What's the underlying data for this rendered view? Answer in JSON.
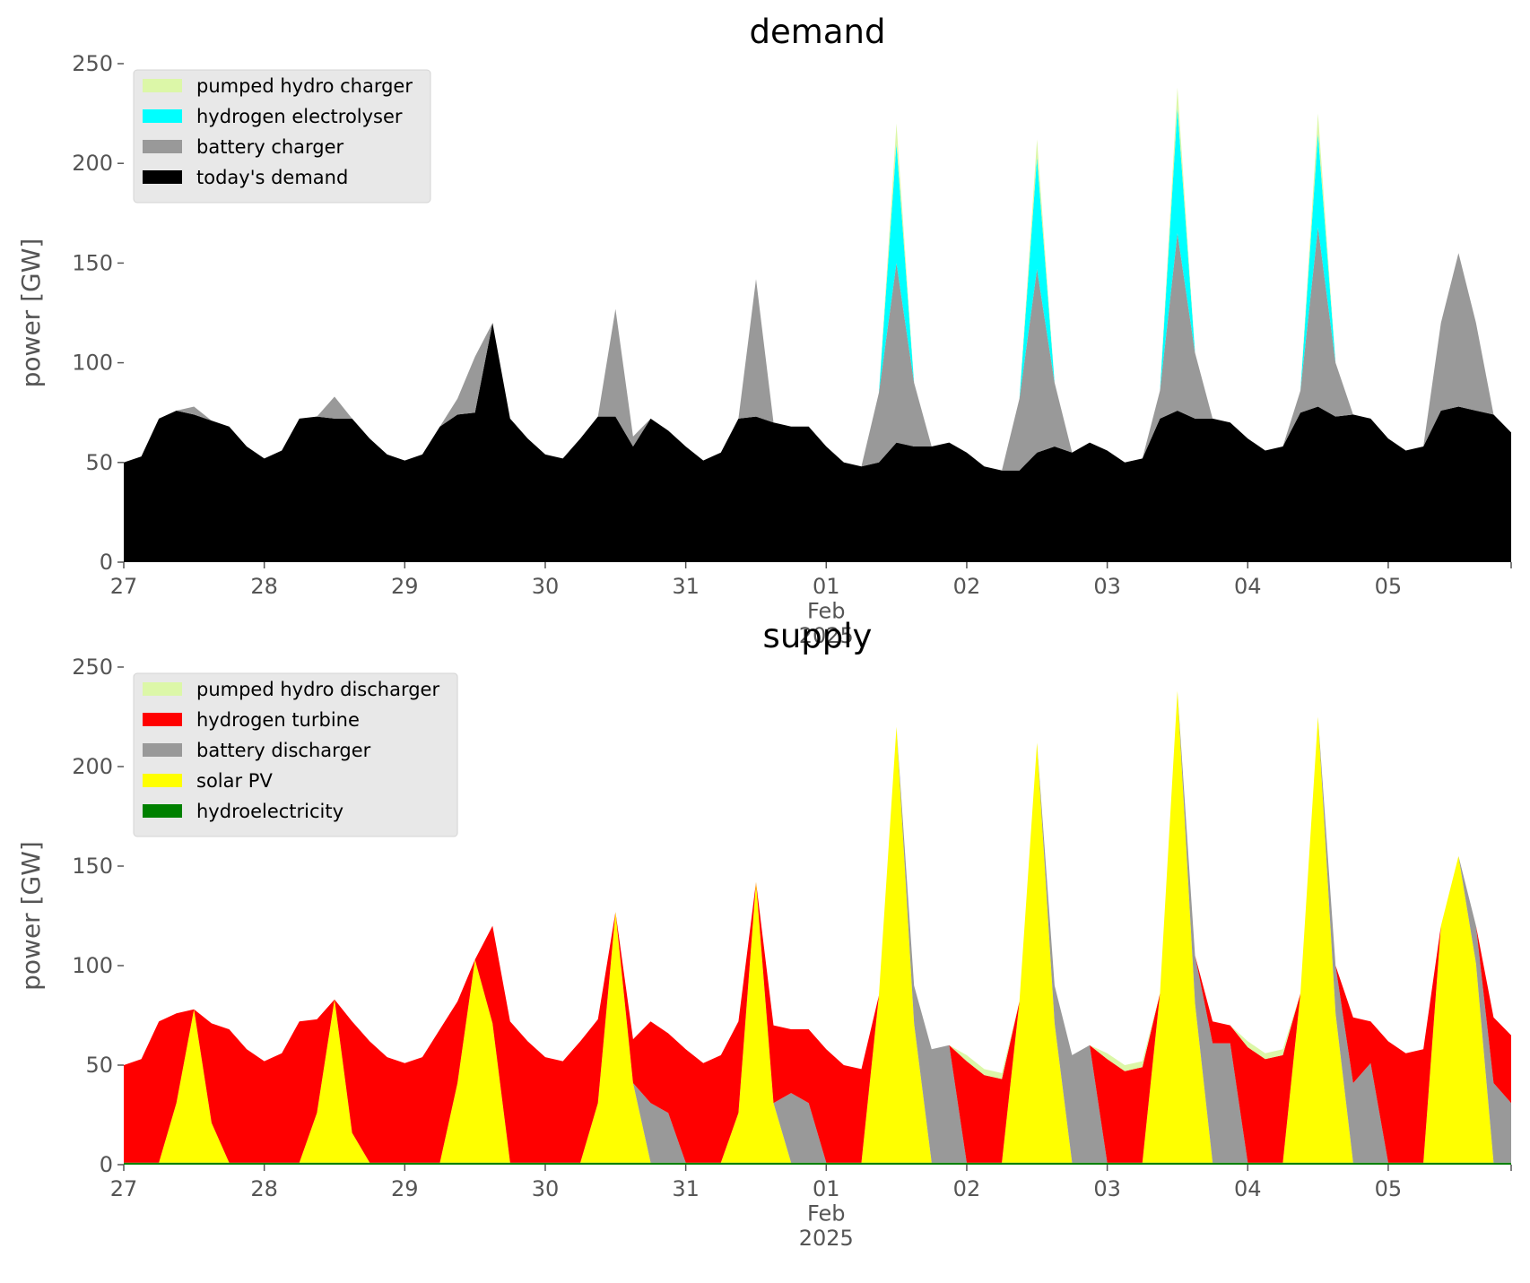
{
  "chart_data": [
    {
      "type": "area",
      "stacked": true,
      "title": "demand",
      "ylabel": "power [GW]",
      "legend": "upper left",
      "x": [
        0,
        0.125,
        0.25,
        0.375,
        0.5,
        0.625,
        0.75,
        0.875,
        1,
        1.125,
        1.25,
        1.375,
        1.5,
        1.625,
        1.75,
        1.875,
        2,
        2.125,
        2.25,
        2.375,
        2.5,
        2.625,
        2.75,
        2.875,
        3,
        3.125,
        3.25,
        3.375,
        3.5,
        3.625,
        3.75,
        3.875,
        4,
        4.125,
        4.25,
        4.375,
        4.5,
        4.625,
        4.75,
        4.875,
        5,
        5.125,
        5.25,
        5.375,
        5.5,
        5.625,
        5.75,
        5.875,
        6,
        6.125,
        6.25,
        6.375,
        6.5,
        6.625,
        6.75,
        6.875,
        7,
        7.125,
        7.25,
        7.375,
        7.5,
        7.625,
        7.75,
        7.875,
        8,
        8.125,
        8.25,
        8.375,
        8.5,
        8.625,
        8.75,
        8.875,
        9,
        9.125,
        9.25,
        9.375,
        9.5,
        9.625,
        9.75,
        9.875
      ],
      "xlim": [
        0,
        9.875
      ],
      "xticks": [
        {
          "value": 0,
          "label": "27"
        },
        {
          "value": 1,
          "label": "28"
        },
        {
          "value": 2,
          "label": "29"
        },
        {
          "value": 3,
          "label": "30"
        },
        {
          "value": 4,
          "label": "31"
        },
        {
          "value": 5,
          "label": "01\nFeb\n2025"
        },
        {
          "value": 6,
          "label": "02"
        },
        {
          "value": 7,
          "label": "03"
        },
        {
          "value": 8,
          "label": "04"
        },
        {
          "value": 9,
          "label": "05"
        }
      ],
      "ylim": [
        0,
        250
      ],
      "yticks": [
        0,
        50,
        100,
        150,
        200,
        250
      ],
      "series": [
        {
          "name": "today's demand",
          "color": "#000000",
          "values": [
            50,
            53,
            72,
            76,
            74,
            71,
            68,
            58,
            52,
            56,
            72,
            73,
            72,
            72,
            62,
            54,
            51,
            54,
            68,
            74,
            75,
            120,
            72,
            62,
            54,
            52,
            62,
            73,
            73,
            58,
            72,
            66,
            58,
            51,
            55,
            72,
            73,
            70,
            68,
            68,
            58,
            50,
            48,
            50,
            60,
            58,
            58,
            60,
            55,
            48,
            46,
            46,
            55,
            58,
            55,
            60,
            56,
            50,
            52,
            72,
            76,
            72,
            72,
            70,
            62,
            56,
            58,
            75,
            78,
            73,
            74,
            72,
            62,
            56,
            58,
            76,
            78,
            76,
            74,
            65
          ]
        },
        {
          "name": "battery charger",
          "color": "#999999",
          "values": [
            0,
            0,
            0,
            0,
            4,
            0,
            0,
            0,
            0,
            0,
            0,
            0,
            11,
            0,
            0,
            0,
            0,
            0,
            0,
            8,
            28,
            0,
            0,
            0,
            0,
            0,
            0,
            0,
            54,
            5,
            0,
            0,
            0,
            0,
            0,
            0,
            69,
            0,
            0,
            0,
            0,
            0,
            0,
            35,
            90,
            32,
            0,
            0,
            0,
            0,
            0,
            36,
            92,
            32,
            0,
            0,
            0,
            0,
            0,
            14,
            89,
            33,
            0,
            0,
            0,
            0,
            0,
            11,
            90,
            27,
            0,
            0,
            0,
            0,
            0,
            44,
            77,
            44,
            0,
            0
          ]
        },
        {
          "name": "hydrogen electrolyser",
          "color": "#00ffff",
          "values": [
            0,
            0,
            0,
            0,
            0,
            0,
            0,
            0,
            0,
            0,
            0,
            0,
            0,
            0,
            0,
            0,
            0,
            0,
            0,
            0,
            0,
            0,
            0,
            0,
            0,
            0,
            0,
            0,
            0,
            0,
            0,
            0,
            0,
            0,
            0,
            0,
            0,
            0,
            0,
            0,
            0,
            0,
            0,
            0,
            60,
            0,
            0,
            0,
            0,
            0,
            0,
            0,
            56,
            0,
            0,
            0,
            0,
            0,
            0,
            0,
            63,
            0,
            0,
            0,
            0,
            0,
            0,
            0,
            47,
            0,
            0,
            0,
            0,
            0,
            0,
            0,
            0,
            0,
            0,
            0
          ]
        },
        {
          "name": "pumped hydro charger",
          "color": "#dcf7a8",
          "values": [
            0,
            0,
            0,
            0,
            0,
            0,
            0,
            0,
            0,
            0,
            0,
            0,
            0,
            0,
            0,
            0,
            0,
            0,
            0,
            0,
            0,
            0,
            0,
            0,
            0,
            0,
            0,
            0,
            0,
            0,
            0,
            0,
            0,
            0,
            0,
            0,
            0,
            0,
            0,
            0,
            0,
            0,
            0,
            0,
            10,
            0,
            0,
            0,
            0,
            0,
            0,
            0,
            9,
            0,
            0,
            0,
            0,
            0,
            0,
            0,
            10,
            0,
            0,
            0,
            0,
            0,
            0,
            0,
            10,
            0,
            0,
            0,
            0,
            0,
            0,
            0,
            0,
            0,
            0,
            0
          ]
        }
      ]
    },
    {
      "type": "area",
      "stacked": true,
      "title": "supply",
      "ylabel": "power [GW]",
      "legend": "upper left",
      "x": [
        0,
        0.125,
        0.25,
        0.375,
        0.5,
        0.625,
        0.75,
        0.875,
        1,
        1.125,
        1.25,
        1.375,
        1.5,
        1.625,
        1.75,
        1.875,
        2,
        2.125,
        2.25,
        2.375,
        2.5,
        2.625,
        2.75,
        2.875,
        3,
        3.125,
        3.25,
        3.375,
        3.5,
        3.625,
        3.75,
        3.875,
        4,
        4.125,
        4.25,
        4.375,
        4.5,
        4.625,
        4.75,
        4.875,
        5,
        5.125,
        5.25,
        5.375,
        5.5,
        5.625,
        5.75,
        5.875,
        6,
        6.125,
        6.25,
        6.375,
        6.5,
        6.625,
        6.75,
        6.875,
        7,
        7.125,
        7.25,
        7.375,
        7.5,
        7.625,
        7.75,
        7.875,
        8,
        8.125,
        8.25,
        8.375,
        8.5,
        8.625,
        8.75,
        8.875,
        9,
        9.125,
        9.25,
        9.375,
        9.5,
        9.625,
        9.75,
        9.875
      ],
      "xlim": [
        0,
        9.875
      ],
      "xticks": [
        {
          "value": 0,
          "label": "27"
        },
        {
          "value": 1,
          "label": "28"
        },
        {
          "value": 2,
          "label": "29"
        },
        {
          "value": 3,
          "label": "30"
        },
        {
          "value": 4,
          "label": "31"
        },
        {
          "value": 5,
          "label": "01\nFeb\n2025"
        },
        {
          "value": 6,
          "label": "02"
        },
        {
          "value": 7,
          "label": "03"
        },
        {
          "value": 8,
          "label": "04"
        },
        {
          "value": 9,
          "label": "05"
        }
      ],
      "ylim": [
        0,
        250
      ],
      "yticks": [
        0,
        50,
        100,
        150,
        200,
        250
      ],
      "series": [
        {
          "name": "hydroelectricity",
          "color": "#008000",
          "values": [
            1,
            1,
            1,
            1,
            1,
            1,
            1,
            1,
            1,
            1,
            1,
            1,
            1,
            1,
            1,
            1,
            1,
            1,
            1,
            1,
            1,
            1,
            1,
            1,
            1,
            1,
            1,
            1,
            1,
            1,
            1,
            1,
            1,
            1,
            1,
            1,
            1,
            1,
            1,
            1,
            1,
            1,
            1,
            1,
            1,
            1,
            1,
            1,
            1,
            1,
            1,
            1,
            1,
            1,
            1,
            1,
            1,
            1,
            1,
            1,
            1,
            1,
            1,
            1,
            1,
            1,
            1,
            1,
            1,
            1,
            1,
            1,
            1,
            1,
            1,
            1,
            1,
            1,
            1,
            1
          ]
        },
        {
          "name": "solar PV",
          "color": "#ffff00",
          "values": [
            0,
            0,
            0,
            30,
            77,
            20,
            0,
            0,
            0,
            0,
            0,
            25,
            82,
            15,
            0,
            0,
            0,
            0,
            0,
            40,
            102,
            70,
            0,
            0,
            0,
            0,
            0,
            30,
            126,
            40,
            0,
            0,
            0,
            0,
            0,
            25,
            141,
            30,
            0,
            0,
            0,
            0,
            0,
            84,
            219,
            70,
            0,
            0,
            0,
            0,
            0,
            81,
            211,
            70,
            0,
            0,
            0,
            0,
            0,
            85,
            237,
            80,
            0,
            0,
            0,
            0,
            0,
            85,
            224,
            75,
            0,
            0,
            0,
            0,
            0,
            119,
            154,
            100,
            0,
            0
          ]
        },
        {
          "name": "battery discharger",
          "color": "#999999",
          "values": [
            0,
            0,
            0,
            0,
            0,
            0,
            0,
            0,
            0,
            0,
            0,
            0,
            0,
            0,
            0,
            0,
            0,
            0,
            0,
            0,
            0,
            0,
            0,
            0,
            0,
            0,
            0,
            0,
            0,
            0,
            30,
            25,
            0,
            0,
            0,
            0,
            0,
            0,
            35,
            30,
            0,
            0,
            0,
            0,
            0,
            19,
            57,
            59,
            0,
            0,
            0,
            0,
            0,
            19,
            54,
            59,
            0,
            0,
            0,
            0,
            0,
            24,
            60,
            60,
            0,
            0,
            0,
            0,
            0,
            24,
            40,
            50,
            0,
            0,
            0,
            0,
            0,
            19,
            40,
            30
          ]
        },
        {
          "name": "hydrogen turbine",
          "color": "#ff0000",
          "values": [
            49,
            52,
            71,
            45,
            0,
            50,
            67,
            57,
            51,
            55,
            71,
            47,
            0,
            56,
            61,
            53,
            50,
            53,
            67,
            41,
            0,
            49,
            71,
            61,
            53,
            51,
            61,
            42,
            0,
            22,
            41,
            40,
            57,
            50,
            54,
            46,
            0,
            39,
            32,
            37,
            57,
            49,
            47,
            0,
            0,
            0,
            0,
            0,
            51,
            44,
            42,
            0,
            0,
            0,
            0,
            0,
            52,
            46,
            48,
            0,
            0,
            0,
            11,
            9,
            58,
            52,
            54,
            0,
            0,
            0,
            33,
            21,
            61,
            55,
            57,
            0,
            0,
            0,
            33,
            34
          ]
        },
        {
          "name": "pumped hydro discharger",
          "color": "#dcf7a8",
          "values": [
            0,
            0,
            0,
            0,
            0,
            0,
            0,
            0,
            0,
            0,
            0,
            0,
            0,
            0,
            0,
            0,
            0,
            0,
            0,
            0,
            0,
            0,
            0,
            0,
            0,
            0,
            0,
            0,
            0,
            0,
            0,
            0,
            0,
            0,
            0,
            0,
            0,
            0,
            0,
            0,
            0,
            0,
            0,
            0,
            0,
            0,
            0,
            0,
            3,
            3,
            3,
            0,
            0,
            0,
            0,
            0,
            3,
            3,
            3,
            0,
            0,
            0,
            0,
            0,
            3,
            3,
            3,
            0,
            0,
            0,
            0,
            0,
            0,
            0,
            0,
            0,
            0,
            0,
            0,
            0
          ]
        }
      ]
    }
  ]
}
